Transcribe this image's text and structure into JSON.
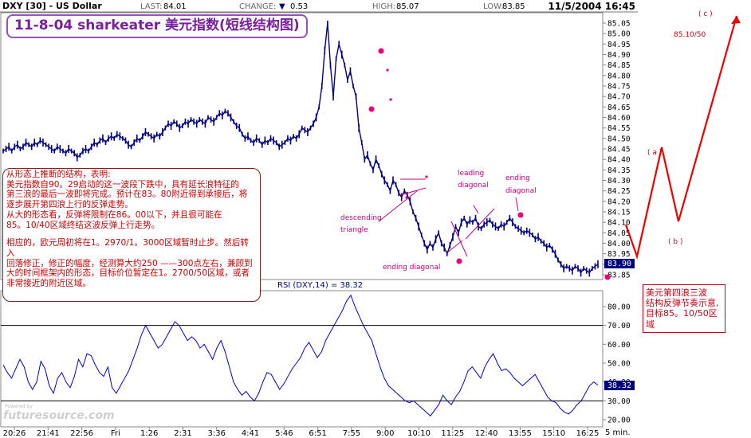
{
  "header": {
    "symbol": "DXY [30] - US Dollar",
    "last_label": "LAST:",
    "last": "84.01",
    "change_label": "CHANGE:",
    "change_arrow": "▼",
    "change": "0.53",
    "high_label": "HIGH:",
    "high": "85.07",
    "low_label": "LOW:",
    "low": "83.85",
    "datetime": "11/5/2004 16:45"
  },
  "title": "11-8-04 sharkeater 美元指数(短线结构图)",
  "left_note": {
    "lines": [
      "从形态上推断的结构，表明:",
      "美元指数自90。29启动的这一波段下跌中，具有延长浪特征的",
      "第三浪的最后一波即将完成。预计在83。80附近得到承接后，将",
      "逐步展开第四浪上行的反弹走势。",
      "从大的形态看，反弹将限制在86。00以下，并且很可能在",
      "85。10/40区域终结这波反弹上行走势。",
      "",
      "相应的，欧元周初将在1。2970/1。3000区域暂时止步。然后转入",
      "回落修正，修正的幅度，经测算大约250 ——300点左右，兼顾到",
      "大的时间框架内的形态，目标价位暂定在1。2700/50区域，或者",
      "非常接近的附近区域。"
    ]
  },
  "right_note": {
    "lines": [
      "美元第四浪三波",
      "结构反弹节奏示意,",
      "目标85。10/50区域"
    ]
  },
  "annotations": {
    "descending_triangle": [
      "descending",
      "triangle"
    ],
    "ending_diagonal_1": "ending diagonal",
    "leading_diagonal": [
      "leading",
      "diagonal"
    ],
    "ending_diagonal_2": [
      "ending",
      "diagonal"
    ],
    "wave_a": "( a )",
    "wave_b": "( b )",
    "wave_c": "( c )",
    "target": "85.10/50"
  },
  "price_axis": {
    "ticks": [
      "85.05",
      "85.00",
      "84.95",
      "84.90",
      "84.85",
      "84.80",
      "84.75",
      "84.70",
      "84.65",
      "84.60",
      "84.55",
      "84.50",
      "84.45",
      "84.40",
      "84.35",
      "84.30",
      "84.25",
      "84.20",
      "84.15",
      "84.10",
      "84.05",
      "84.00",
      "83.95",
      "83.90",
      "83.85"
    ],
    "current": "83.90"
  },
  "rsi": {
    "label": "RSI (DXY,14) = 38.32",
    "ticks": [
      "80.00",
      "70.00",
      "60.00",
      "50.00",
      "40.00",
      "30.00",
      "20.00"
    ],
    "current": "38.32"
  },
  "time_axis": {
    "labels": [
      "20:26",
      "21:41",
      "22:56",
      "Fri",
      "1:26",
      "2:31",
      "3:36",
      "4:41",
      "5:46",
      "6:51",
      "7:55",
      "9:00",
      "10:10",
      "11:25",
      "12:40",
      "13:55",
      "15:10",
      "16:25"
    ],
    "interval": "5 min."
  },
  "watermark": {
    "prefix": "Powered by",
    "name": "futuresource.com"
  },
  "chart_data": [
    {
      "type": "line",
      "name": "price",
      "ylim": [
        83.83,
        85.08
      ],
      "y": [
        84.44,
        84.45,
        84.46,
        84.44,
        84.46,
        84.47,
        84.45,
        84.46,
        84.48,
        84.47,
        84.46,
        84.48,
        84.47,
        84.49,
        84.48,
        84.47,
        84.46,
        84.45,
        84.44,
        84.46,
        84.45,
        84.44,
        84.43,
        84.45,
        84.44,
        84.43,
        84.41,
        84.42,
        84.44,
        84.45,
        84.44,
        84.46,
        84.48,
        84.47,
        84.49,
        84.5,
        84.48,
        84.5,
        84.51,
        84.5,
        84.52,
        84.51,
        84.5,
        84.49,
        84.47,
        84.46,
        84.48,
        84.5,
        84.49,
        84.51,
        84.53,
        84.52,
        84.51,
        84.5,
        84.52,
        84.51,
        84.53,
        84.55,
        84.57,
        84.56,
        84.58,
        84.57,
        84.55,
        84.56,
        84.58,
        84.57,
        84.59,
        84.58,
        84.57,
        84.59,
        84.58,
        84.57,
        84.6,
        84.59,
        84.58,
        84.6,
        84.62,
        84.61,
        84.63,
        84.62,
        84.6,
        84.58,
        84.56,
        84.55,
        84.52,
        84.5,
        84.51,
        84.49,
        84.48,
        84.5,
        84.49,
        84.47,
        84.49,
        84.48,
        84.5,
        84.49,
        84.48,
        84.46,
        84.47,
        84.48,
        84.5,
        84.49,
        84.51,
        84.5,
        84.52,
        84.55,
        84.54,
        84.53,
        84.55,
        84.57,
        84.6,
        84.65,
        84.75,
        84.92,
        85.05,
        84.85,
        84.7,
        84.88,
        84.95,
        84.9,
        84.85,
        84.78,
        84.82,
        84.75,
        84.7,
        84.55,
        84.48,
        84.4,
        84.42,
        84.38,
        84.35,
        84.4,
        84.37,
        84.33,
        84.3,
        84.28,
        84.25,
        84.3,
        84.28,
        84.24,
        84.22,
        84.25,
        84.23,
        84.2,
        84.15,
        84.12,
        84.08,
        84.04,
        84.0,
        83.97,
        84.0,
        83.98,
        84.02,
        84.05,
        84.0,
        83.98,
        83.95,
        83.99,
        84.03,
        84.08,
        84.05,
        84.1,
        84.12,
        84.09,
        84.11,
        84.1,
        84.12,
        84.08,
        84.07,
        84.09,
        84.1,
        84.11,
        84.09,
        84.08,
        84.07,
        84.09,
        84.08,
        84.1,
        84.12,
        84.1,
        84.08,
        84.07,
        84.06,
        84.05,
        84.06,
        84.05,
        84.04,
        84.02,
        84.03,
        84.01,
        84.0,
        83.98,
        83.99,
        83.97,
        83.95,
        83.92,
        83.9,
        83.88,
        83.89,
        83.88,
        83.87,
        83.89,
        83.88,
        83.86,
        83.88,
        83.87,
        83.86,
        83.88,
        83.89,
        83.9
      ]
    },
    {
      "type": "line",
      "name": "RSI (DXY,14)",
      "ylim": [
        20,
        85
      ],
      "y": [
        49,
        45,
        42,
        47,
        52,
        48,
        40,
        36,
        40,
        51,
        47,
        38,
        34,
        42,
        45,
        40,
        37,
        43,
        52,
        48,
        55,
        54,
        49,
        45,
        43,
        48,
        37,
        34,
        38,
        42,
        46,
        52,
        58,
        65,
        70,
        66,
        62,
        58,
        60,
        64,
        68,
        72,
        70,
        66,
        62,
        64,
        62,
        58,
        60,
        56,
        52,
        58,
        62,
        56,
        48,
        40,
        36,
        33,
        35,
        32,
        30,
        34,
        40,
        45,
        44,
        40,
        36,
        39,
        43,
        47,
        50,
        53,
        58,
        61,
        57,
        53,
        56,
        62,
        66,
        70,
        74,
        78,
        83,
        86,
        80,
        75,
        70,
        66,
        62,
        55,
        48,
        42,
        38,
        36,
        34,
        32,
        30,
        29,
        30,
        28,
        26,
        24,
        22,
        25,
        28,
        33,
        30,
        28,
        32,
        35,
        40,
        46,
        48,
        45,
        42,
        48,
        52,
        55,
        50,
        46,
        47,
        45,
        42,
        40,
        38,
        40,
        42,
        44,
        40,
        36,
        32,
        30,
        29,
        26,
        24,
        23,
        25,
        28,
        30,
        34,
        38,
        40,
        38.32
      ]
    }
  ],
  "colors": {
    "accent": "#c80014",
    "purple": "#7a1f9e",
    "magenta": "#cc0077",
    "price": "#000080",
    "rsi": "#0000cc",
    "current_box": "#000080"
  }
}
